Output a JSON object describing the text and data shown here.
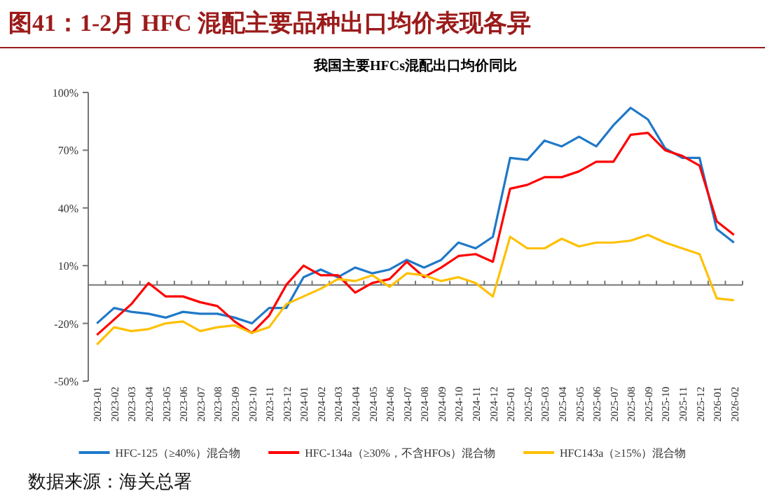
{
  "chart_data": {
    "type": "line",
    "title": "图41：1-2月 HFC 混配主要品种出口均价表现各异",
    "subtitle": "我国主要HFCs混配出口均价同比",
    "annotations": [
      "数据来源：海关总署"
    ],
    "categories": [
      "2023-01",
      "2023-02",
      "2023-03",
      "2023-04",
      "2023-05",
      "2023-06",
      "2023-07",
      "2023-08",
      "2023-09",
      "2023-10",
      "2023-11",
      "2023-12",
      "2024-01",
      "2024-02",
      "2024-03",
      "2024-04",
      "2024-05",
      "2024-06",
      "2024-07",
      "2024-08",
      "2024-09",
      "2024-10",
      "2024-11",
      "2024-12",
      "2025-01",
      "2025-02",
      "2025-03",
      "2025-04",
      "2025-05",
      "2025-06",
      "2025-07",
      "2025-08",
      "2025-09",
      "2025-10",
      "2025-11",
      "2025-12",
      "2026-01",
      "2026-02"
    ],
    "series": [
      {
        "name": "HFC-125（≥40%）混合物",
        "color": "#1f78c8",
        "values": [
          -20,
          -12,
          -14,
          -15,
          -17,
          -14,
          -15,
          -15,
          -17,
          -20,
          -12,
          -12,
          4,
          8,
          4,
          9,
          6,
          8,
          13,
          9,
          13,
          22,
          19,
          25,
          66,
          65,
          75,
          72,
          77,
          72,
          83,
          92,
          86,
          71,
          66,
          66,
          29,
          22
        ]
      },
      {
        "name": "HFC-134a（≥30%，不含HFOs）混合物",
        "color": "#ff0000",
        "values": [
          -26,
          -18,
          -10,
          1,
          -6,
          -6,
          -9,
          -11,
          -19,
          -25,
          -16,
          0,
          10,
          5,
          5,
          -4,
          1,
          3,
          12,
          4,
          9,
          15,
          16,
          12,
          50,
          52,
          56,
          56,
          59,
          64,
          64,
          78,
          79,
          70,
          67,
          62,
          33,
          26
        ]
      },
      {
        "name": "HFC143a（≥15%）混合物",
        "color": "#ffc000",
        "values": [
          -31,
          -22,
          -24,
          -23,
          -20,
          -19,
          -24,
          -22,
          -21,
          -25,
          -22,
          -10,
          -6,
          -2,
          3,
          2,
          5,
          -1,
          6,
          5,
          2,
          4,
          1,
          -6,
          25,
          19,
          19,
          24,
          20,
          22,
          22,
          23,
          26,
          22,
          19,
          16,
          -7,
          -8
        ]
      }
    ],
    "ylim": [
      -50,
      100
    ],
    "yticks": [
      {
        "value": -50,
        "label": "-50%"
      },
      {
        "value": -20,
        "label": "-20%"
      },
      {
        "value": 10,
        "label": "10%"
      },
      {
        "value": 40,
        "label": "40%"
      },
      {
        "value": 70,
        "label": "70%"
      },
      {
        "value": 100,
        "label": "100%"
      }
    ],
    "grid": false,
    "legend": "bottom",
    "line_style": "solid"
  }
}
